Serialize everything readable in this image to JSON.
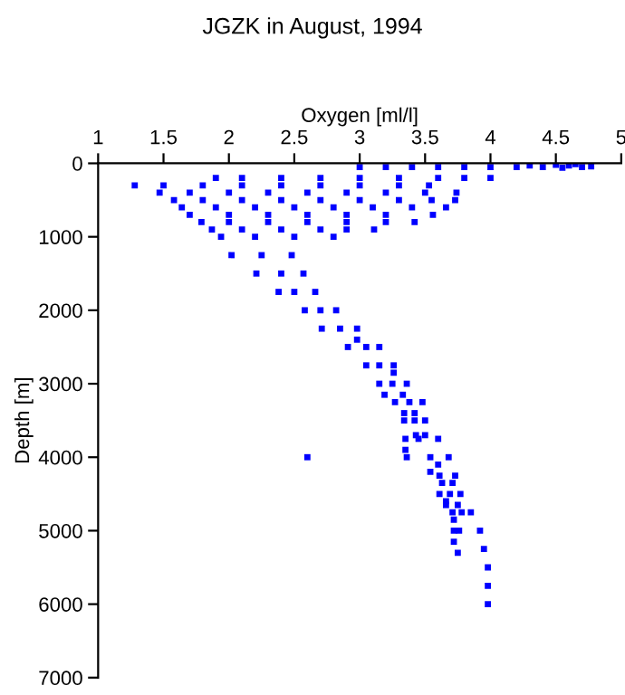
{
  "chart_data": {
    "type": "scatter",
    "title": "JGZK in August, 1994",
    "xlabel": "Oxygen [ml/l]",
    "ylabel": "Depth [m]",
    "xlim": [
      1,
      5
    ],
    "xticks": [
      1,
      1.5,
      2,
      2.5,
      3,
      3.5,
      4,
      4.5,
      5
    ],
    "ylim": [
      7000,
      0
    ],
    "yticks": [
      0,
      1000,
      2000,
      3000,
      4000,
      5000,
      6000,
      7000
    ],
    "marker": "square",
    "grid": false,
    "series": [
      {
        "color": "#0000ff",
        "x": [
          3.0,
          3.2,
          3.4,
          3.6,
          3.8,
          4.0,
          4.2,
          4.3,
          4.4,
          4.5,
          4.55,
          4.6,
          4.65,
          4.7,
          4.77,
          1.9,
          2.1,
          2.4,
          2.7,
          3.0,
          3.3,
          3.6,
          3.8,
          4.0,
          1.28,
          1.5,
          1.8,
          2.1,
          2.4,
          2.7,
          3.0,
          3.3,
          3.53,
          1.47,
          1.7,
          2.0,
          2.3,
          2.6,
          2.9,
          3.2,
          3.5,
          3.74,
          1.58,
          1.8,
          2.1,
          2.4,
          2.7,
          3.0,
          3.3,
          3.55,
          3.73,
          1.64,
          1.9,
          2.2,
          2.5,
          2.8,
          3.1,
          3.4,
          3.66,
          1.7,
          2.0,
          2.3,
          2.6,
          2.9,
          3.2,
          3.56,
          1.79,
          2.0,
          2.3,
          2.6,
          2.9,
          3.2,
          3.42,
          1.87,
          2.1,
          2.4,
          2.7,
          2.9,
          3.11,
          1.94,
          2.2,
          2.5,
          2.8,
          2.02,
          2.25,
          2.48,
          2.21,
          2.4,
          2.57,
          2.38,
          2.5,
          2.66,
          2.58,
          2.7,
          2.82,
          2.71,
          2.85,
          2.98,
          2.98,
          2.91,
          3.05,
          3.15,
          3.05,
          3.15,
          3.26,
          3.26,
          3.15,
          3.25,
          3.36,
          3.19,
          3.33,
          3.27,
          3.38,
          3.48,
          3.34,
          3.42,
          3.34,
          3.42,
          3.5,
          3.43,
          3.5,
          3.35,
          3.45,
          3.6,
          3.35,
          2.6,
          3.36,
          3.54,
          3.68,
          3.6,
          3.54,
          3.61,
          3.73,
          3.63,
          3.71,
          3.61,
          3.69,
          3.77,
          3.66,
          3.66,
          3.75,
          3.71,
          3.78,
          3.85,
          3.72,
          3.72,
          3.76,
          3.92,
          3.72,
          3.95,
          3.75,
          3.98,
          3.98,
          3.98
        ],
        "values": [
          50,
          50,
          50,
          50,
          50,
          50,
          50,
          30,
          50,
          20,
          60,
          30,
          10,
          50,
          40,
          200,
          200,
          200,
          200,
          200,
          200,
          200,
          200,
          200,
          300,
          300,
          300,
          300,
          300,
          300,
          300,
          300,
          300,
          400,
          400,
          400,
          400,
          400,
          400,
          400,
          400,
          400,
          500,
          500,
          500,
          500,
          500,
          500,
          500,
          500,
          500,
          600,
          600,
          600,
          600,
          600,
          600,
          600,
          600,
          700,
          700,
          700,
          700,
          700,
          700,
          700,
          800,
          800,
          800,
          800,
          800,
          800,
          800,
          900,
          900,
          900,
          900,
          900,
          900,
          1000,
          1000,
          1000,
          1000,
          1250,
          1250,
          1250,
          1500,
          1500,
          1500,
          1750,
          1750,
          1750,
          2000,
          2000,
          2000,
          2250,
          2250,
          2250,
          2400,
          2500,
          2500,
          2500,
          2750,
          2750,
          2750,
          2850,
          3000,
          3000,
          3000,
          3150,
          3150,
          3250,
          3250,
          3250,
          3400,
          3400,
          3500,
          3500,
          3500,
          3700,
          3700,
          3750,
          3750,
          3750,
          3900,
          4000,
          4000,
          4000,
          4000,
          4100,
          4200,
          4250,
          4250,
          4350,
          4350,
          4500,
          4500,
          4500,
          4600,
          4650,
          4650,
          4750,
          4750,
          4750,
          4850,
          5000,
          5000,
          5000,
          5150,
          5250,
          5300,
          5500,
          5750,
          6000
        ]
      }
    ]
  }
}
